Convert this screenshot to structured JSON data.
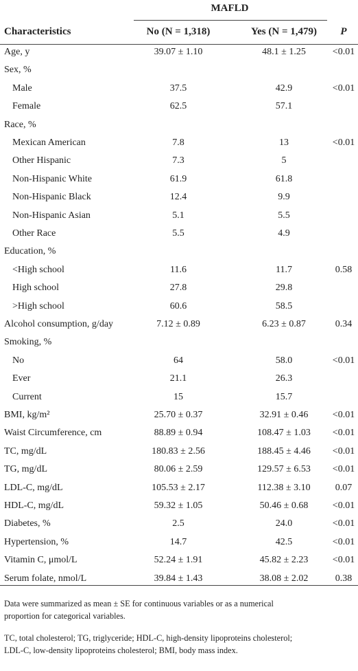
{
  "table": {
    "group_header": "MAFLD",
    "columns": [
      "Characteristics",
      "No (N = 1,318)",
      "Yes (N = 1,479)",
      "P"
    ],
    "rows": [
      {
        "label": "Age, y",
        "no": "39.07 ± 1.10",
        "yes": "48.1 ± 1.25",
        "p": "<0.01"
      },
      {
        "label": "Sex, %",
        "items": [
          {
            "label": "Male",
            "no": "37.5",
            "yes": "42.9",
            "p": "<0.01"
          },
          {
            "label": "Female",
            "no": "62.5",
            "yes": "57.1"
          }
        ]
      },
      {
        "label": "Race, %",
        "items": [
          {
            "label": "Mexican American",
            "no": "7.8",
            "yes": "13",
            "p": "<0.01"
          },
          {
            "label": "Other Hispanic",
            "no": "7.3",
            "yes": "5"
          },
          {
            "label": "Non-Hispanic White",
            "no": "61.9",
            "yes": "61.8"
          },
          {
            "label": "Non-Hispanic Black",
            "no": "12.4",
            "yes": "9.9"
          },
          {
            "label": "Non-Hispanic Asian",
            "no": "5.1",
            "yes": "5.5"
          },
          {
            "label": "Other Race",
            "no": "5.5",
            "yes": "4.9"
          }
        ]
      },
      {
        "label": "Education, %",
        "items": [
          {
            "label": "<High school",
            "no": "11.6",
            "yes": "11.7",
            "p": "0.58"
          },
          {
            "label": "High school",
            "no": "27.8",
            "yes": "29.8"
          },
          {
            "label": ">High school",
            "no": "60.6",
            "yes": "58.5"
          }
        ]
      },
      {
        "label": "Alcohol consumption, g/day",
        "no": "7.12 ± 0.89",
        "yes": "6.23 ± 0.87",
        "p": "0.34"
      },
      {
        "label": "Smoking, %",
        "items": [
          {
            "label": "No",
            "no": "64",
            "yes": "58.0",
            "p": "<0.01"
          },
          {
            "label": "Ever",
            "no": "21.1",
            "yes": "26.3"
          },
          {
            "label": "Current",
            "no": "15",
            "yes": "15.7"
          }
        ]
      },
      {
        "label": "BMI, kg/m²",
        "no": "25.70 ± 0.37",
        "yes": "32.91 ± 0.46",
        "p": "<0.01"
      },
      {
        "label": "Waist Circumference, cm",
        "no": "88.89 ± 0.94",
        "yes": "108.47 ± 1.03",
        "p": "<0.01"
      },
      {
        "label": "TC, mg/dL",
        "no": "180.83 ± 2.56",
        "yes": "188.45 ± 4.46",
        "p": "<0.01"
      },
      {
        "label": "TG, mg/dL",
        "no": "80.06 ± 2.59",
        "yes": "129.57 ± 6.53",
        "p": "<0.01"
      },
      {
        "label": "LDL-C, mg/dL",
        "no": "105.53 ± 2.17",
        "yes": "112.38 ± 3.10",
        "p": "0.07"
      },
      {
        "label": "HDL-C, mg/dL",
        "no": "59.32 ± 1.05",
        "yes": "50.46 ± 0.68",
        "p": "<0.01"
      },
      {
        "label": "Diabetes, %",
        "no": "2.5",
        "yes": "24.0",
        "p": "<0.01"
      },
      {
        "label": "Hypertension, %",
        "no": "14.7",
        "yes": "42.5",
        "p": "<0.01"
      },
      {
        "label": "Vitamin C, μmol/L",
        "no": "52.24 ± 1.91",
        "yes": "45.82 ± 2.23",
        "p": "<0.01"
      },
      {
        "label": "Serum folate, nmol/L",
        "no": "39.84 ± 1.43",
        "yes": "38.08 ± 2.02",
        "p": "0.38"
      }
    ],
    "footnotes": [
      [
        "Data were summarized as mean ± SE for continuous variables or as a numerical",
        "proportion for categorical variables."
      ],
      [
        "TC, total cholesterol; TG, triglyceride; HDL-C, high-density lipoproteins cholesterol;",
        "LDL-C, low-density lipoproteins cholesterol; BMI, body mass index."
      ]
    ]
  }
}
